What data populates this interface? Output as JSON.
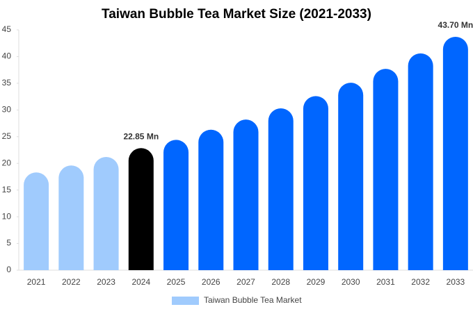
{
  "chart_data": {
    "type": "bar",
    "title": "Taiwan Bubble Tea Market Size (2021-2033)",
    "categories": [
      "2021",
      "2022",
      "2023",
      "2024",
      "2025",
      "2026",
      "2027",
      "2028",
      "2029",
      "2030",
      "2031",
      "2032",
      "2033"
    ],
    "series": [
      {
        "name": "Taiwan Bubble Tea Market",
        "color": "#a0cbfd",
        "colors": [
          "#a0cbfd",
          "#a0cbfd",
          "#a0cbfd",
          "#000000",
          "#0066ff",
          "#0066ff",
          "#0066ff",
          "#0066ff",
          "#0066ff",
          "#0066ff",
          "#0066ff",
          "#0066ff",
          "#0066ff"
        ],
        "values": [
          18.3,
          19.6,
          21.2,
          22.85,
          24.4,
          26.3,
          28.2,
          30.3,
          32.6,
          35.1,
          37.7,
          40.6,
          43.7
        ],
        "value_labels": [
          null,
          null,
          null,
          "22.85 Mn",
          null,
          null,
          null,
          null,
          null,
          null,
          null,
          null,
          "43.70 Mn"
        ]
      }
    ],
    "ylim": [
      0,
      45
    ],
    "yticks": [
      0,
      5,
      10,
      15,
      20,
      25,
      30,
      35,
      40,
      45
    ],
    "grid": false
  }
}
